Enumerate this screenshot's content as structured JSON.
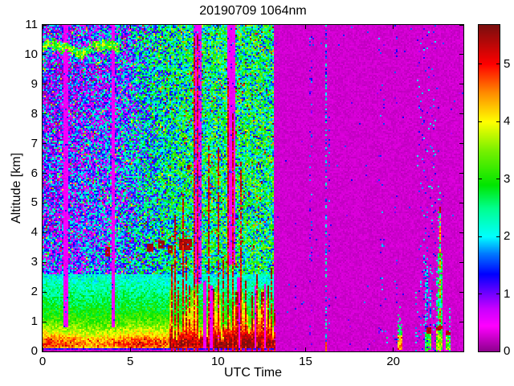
{
  "chart_data": {
    "type": "heatmap",
    "title": "20190709 1064nm",
    "xlabel": "UTC Time",
    "ylabel": "Altitude [km]",
    "xlim": [
      0,
      24
    ],
    "ylim": [
      0,
      11
    ],
    "xticks": [
      0,
      5,
      10,
      15,
      20
    ],
    "yticks": [
      0,
      1,
      2,
      3,
      4,
      5,
      6,
      7,
      8,
      9,
      10,
      11
    ],
    "grid": false,
    "legend": "colorbar-right",
    "colorbar": {
      "min": 0,
      "max": 5.68,
      "ticks": [
        0,
        1,
        2,
        3,
        4,
        5
      ]
    },
    "colors": {
      "background": "#ffffff",
      "axis": "#000000",
      "low_value_purple": "#8b008b"
    },
    "colormap": [
      [
        0.0,
        "#8b008b"
      ],
      [
        0.45,
        "#ff00ff"
      ],
      [
        0.75,
        "#c800ff"
      ],
      [
        1.05,
        "#6400ff"
      ],
      [
        1.35,
        "#0000ff"
      ],
      [
        1.7,
        "#0078ff"
      ],
      [
        2.0,
        "#00ffff"
      ],
      [
        2.5,
        "#00ff8c"
      ],
      [
        2.9,
        "#00e600"
      ],
      [
        3.5,
        "#78f000"
      ],
      [
        4.0,
        "#ffff00"
      ],
      [
        4.5,
        "#ff8c00"
      ],
      [
        5.0,
        "#ff0000"
      ],
      [
        5.68,
        "#7a0e0e"
      ]
    ],
    "background_field": {
      "active_until_utc": 13.18,
      "seed": 7,
      "boundary_layer_profile": [
        [
          0.115,
          4.3
        ],
        [
          0.22,
          4.7
        ],
        [
          0.4,
          4.45
        ],
        [
          0.6,
          3.95
        ],
        [
          0.85,
          3.45
        ],
        [
          1.1,
          3.15
        ],
        [
          1.45,
          2.85
        ],
        [
          1.8,
          2.6
        ],
        [
          2.2,
          2.35
        ],
        [
          2.6,
          2.1
        ]
      ],
      "free_troposphere_means": [
        [
          0,
          1.1
        ],
        [
          1.5,
          1.15
        ],
        [
          3,
          1.35
        ],
        [
          5,
          1.7
        ],
        [
          6.5,
          2.15
        ],
        [
          7.5,
          2.4
        ],
        [
          9,
          2.55
        ],
        [
          13.3,
          2.55
        ]
      ],
      "quiet_background_value": 0.2
    },
    "features": [
      {
        "type": "gap",
        "t": [
          1.17,
          1.46
        ],
        "h": [
          0.8,
          11
        ],
        "dot": 0.05
      },
      {
        "type": "gap",
        "t": [
          3.95,
          4.13
        ],
        "h": [
          0.8,
          11
        ],
        "dot": 0.05
      },
      {
        "type": "cirrus",
        "t": [
          0,
          4.4
        ],
        "h": [
          9.8,
          10.7
        ]
      },
      {
        "type": "gap",
        "t": [
          8.6,
          9.05
        ],
        "h": [
          2.3,
          11
        ],
        "dot": 0.2
      },
      {
        "type": "gap",
        "t": [
          10.52,
          11.0
        ],
        "h": [
          2.9,
          11
        ],
        "dot": 0.06
      },
      {
        "type": "gap",
        "t": [
          9.12,
          9.3
        ],
        "h": [
          0.12,
          2.4
        ],
        "dot": 0.04
      },
      {
        "type": "gap",
        "t": [
          9.55,
          9.68
        ],
        "h": [
          0.12,
          2.2
        ],
        "dot": 0.04
      },
      {
        "type": "gap",
        "t": [
          9.98,
          10.08
        ],
        "h": [
          0.12,
          2.3
        ],
        "dot": 0.04
      },
      {
        "type": "gap",
        "t": [
          11.12,
          11.28
        ],
        "h": [
          0.12,
          2.5
        ],
        "dot": 0.04
      },
      {
        "type": "gap",
        "t": [
          12.05,
          12.18
        ],
        "h": [
          0.12,
          2.2
        ],
        "dot": 0.04
      },
      {
        "type": "gap",
        "t": [
          12.62,
          12.72
        ],
        "h": [
          0.12,
          2.3
        ],
        "dot": 0.04
      },
      {
        "type": "blob",
        "t": [
          3.58,
          3.85
        ],
        "h": [
          3.2,
          3.5
        ]
      },
      {
        "type": "blob",
        "t": [
          5.95,
          6.3
        ],
        "h": [
          3.35,
          3.62
        ]
      },
      {
        "type": "blob",
        "t": [
          6.55,
          7.0
        ],
        "h": [
          3.45,
          3.72
        ]
      },
      {
        "type": "blob",
        "t": [
          7.15,
          7.45
        ],
        "h": [
          3.3,
          3.56
        ]
      },
      {
        "type": "blob",
        "t": [
          7.8,
          8.5
        ],
        "h": [
          3.42,
          3.78
        ]
      },
      {
        "type": "blob",
        "t": [
          8.22,
          8.42
        ],
        "h": [
          6.12,
          6.3
        ]
      },
      {
        "type": "spike",
        "t": 7.35,
        "w": 0.05,
        "top": 2.9
      },
      {
        "type": "spike",
        "t": 7.55,
        "w": 0.05,
        "top": 4.6
      },
      {
        "type": "spike",
        "t": 7.75,
        "w": 0.05,
        "top": 2.4
      },
      {
        "type": "spike",
        "t": 7.98,
        "w": 0.05,
        "top": 5.3
      },
      {
        "type": "spike",
        "t": 8.18,
        "w": 0.05,
        "top": 3.2
      },
      {
        "type": "spike",
        "t": 8.38,
        "w": 0.05,
        "top": 2.3
      },
      {
        "type": "spike",
        "t": 8.62,
        "w": 0.05,
        "top": 10.6
      },
      {
        "type": "spike",
        "t": 8.84,
        "w": 0.05,
        "top": 10.7
      },
      {
        "type": "spike",
        "t": 9.45,
        "w": 0.05,
        "top": 7.0
      },
      {
        "type": "spike",
        "t": 9.78,
        "w": 0.05,
        "top": 2.1
      },
      {
        "type": "spike",
        "t": 10.05,
        "w": 0.05,
        "top": 6.9
      },
      {
        "type": "spike",
        "t": 10.32,
        "w": 0.05,
        "top": 3.2
      },
      {
        "type": "spike",
        "t": 10.6,
        "w": 0.05,
        "top": 9.2
      },
      {
        "type": "spike",
        "t": 10.84,
        "w": 0.05,
        "top": 8.0
      },
      {
        "type": "spike",
        "t": 11.08,
        "w": 0.05,
        "top": 2.0
      },
      {
        "type": "spike",
        "t": 11.35,
        "w": 0.05,
        "top": 6.4
      },
      {
        "type": "spike",
        "t": 11.62,
        "w": 0.05,
        "top": 2.4
      },
      {
        "type": "spike",
        "t": 11.95,
        "w": 0.05,
        "top": 2.0
      },
      {
        "type": "spike",
        "t": 12.25,
        "w": 0.05,
        "top": 2.6
      },
      {
        "type": "spike",
        "t": 12.55,
        "w": 0.05,
        "top": 2.0
      },
      {
        "type": "spike",
        "t": 12.85,
        "w": 0.05,
        "top": 2.2
      },
      {
        "type": "spike",
        "t": 13.08,
        "w": 0.05,
        "top": 2.8
      },
      {
        "type": "spike",
        "t": 13.22,
        "w": 0.05,
        "top": 1.4
      },
      {
        "type": "dots",
        "t": 14.4,
        "w": 0.06,
        "top": 6,
        "density": 0.05,
        "vr": [
          0.7,
          1.5
        ]
      },
      {
        "type": "dots",
        "t": 15.3,
        "w": 0.06,
        "top": 11,
        "density": 0.13,
        "vr": [
          0.6,
          1.9
        ]
      },
      {
        "type": "block",
        "t": [
          15.26,
          15.34
        ],
        "h": [
          0.1,
          1.9
        ],
        "vr": [
          1.5,
          2.5
        ],
        "density": 0.75
      },
      {
        "type": "block",
        "t": [
          15.26,
          15.34
        ],
        "h": [
          0,
          0.1
        ],
        "vr": [
          0.5,
          0.7
        ],
        "density": 1
      },
      {
        "type": "dots",
        "t": 16.18,
        "w": 0.07,
        "top": 11,
        "density": 0.5,
        "vr": [
          1.3,
          2.4
        ]
      },
      {
        "type": "dots",
        "t": 16.32,
        "w": 0.04,
        "top": 8,
        "density": 0.12,
        "vr": [
          1.0,
          2.0
        ]
      },
      {
        "type": "block",
        "t": [
          16.14,
          16.23
        ],
        "h": [
          0,
          0.32
        ],
        "vr": [
          4.5,
          5.3
        ],
        "density": 1
      },
      {
        "type": "dots",
        "t": 17.55,
        "w": 0.05,
        "top": 3.5,
        "density": 0.035,
        "vr": [
          0.7,
          1.3
        ]
      },
      {
        "type": "dots",
        "t": 19.35,
        "w": 0.16,
        "top": 11,
        "density": 0.05,
        "vr": [
          1.0,
          2.0
        ]
      },
      {
        "type": "dots",
        "t": 19.62,
        "w": 0.06,
        "top": 1.2,
        "density": 0.3,
        "vr": [
          1.8,
          2.6
        ]
      },
      {
        "type": "dots",
        "t": 20.15,
        "w": 0.1,
        "top": 11,
        "density": 0.05,
        "vr": [
          0.9,
          1.8
        ]
      },
      {
        "type": "block",
        "t": [
          20.27,
          20.5
        ],
        "h": [
          0.08,
          0.52
        ],
        "vr": [
          3.8,
          5.1
        ],
        "density": 0.95
      },
      {
        "type": "block",
        "t": [
          20.25,
          20.52
        ],
        "h": [
          0.52,
          0.9
        ],
        "vr": [
          2.4,
          3.2
        ],
        "density": 0.7
      },
      {
        "type": "dots",
        "t": 20.38,
        "w": 0.15,
        "top": 1.7,
        "density": 0.15,
        "vr": [
          1.8,
          2.6
        ]
      },
      {
        "type": "dots",
        "t": 21.3,
        "w": 0.06,
        "top": 2.0,
        "density": 0.4,
        "vr": [
          1.7,
          2.7
        ]
      },
      {
        "type": "dots",
        "t": 21.9,
        "w": 0.55,
        "top": 11,
        "density": 0.06,
        "vr": [
          0.8,
          2.2
        ]
      },
      {
        "type": "dots",
        "t": 21.82,
        "w": 0.04,
        "top": 3.3,
        "density": 0.45,
        "vr": [
          1.3,
          2.4
        ]
      },
      {
        "type": "dots",
        "t": 21.97,
        "w": 0.04,
        "top": 3.6,
        "density": 0.45,
        "vr": [
          1.3,
          2.4
        ]
      },
      {
        "type": "dots",
        "t": 22.12,
        "w": 0.04,
        "top": 3.2,
        "density": 0.45,
        "vr": [
          1.3,
          2.4
        ]
      },
      {
        "type": "block",
        "t": [
          21.78,
          21.88
        ],
        "h": [
          0,
          0.6
        ],
        "vr": [
          2.0,
          3.2
        ],
        "density": 0.9
      },
      {
        "type": "block",
        "t": [
          21.93,
          22.18
        ],
        "h": [
          0,
          0.62
        ],
        "vr": [
          2.4,
          3.8
        ],
        "density": 0.95
      },
      {
        "type": "block",
        "t": [
          21.93,
          22.18
        ],
        "h": [
          0.62,
          0.82
        ],
        "vr": [
          5.2,
          5.6
        ],
        "density": 0.9
      },
      {
        "type": "dots",
        "t": 22.3,
        "w": 0.05,
        "top": 1.5,
        "density": 0.2,
        "vr": [
          1.5,
          2.5
        ]
      },
      {
        "type": "dots",
        "t": 22.47,
        "w": 0.05,
        "top": 3.1,
        "density": 0.5,
        "vr": [
          1.8,
          2.8
        ]
      },
      {
        "type": "block",
        "t": [
          22.53,
          22.78
        ],
        "h": [
          0,
          3.3
        ],
        "vr": [
          2.2,
          3.2
        ],
        "density": 0.85
      },
      {
        "type": "spike",
        "t": 22.64,
        "w": 0.05,
        "top": 4.85,
        "v": 4.2
      },
      {
        "type": "dots",
        "t": 22.64,
        "w": 0.07,
        "top": 5.6,
        "density": 0.25,
        "vr": [
          1.8,
          2.8
        ]
      },
      {
        "type": "block",
        "t": [
          22.4,
          22.85
        ],
        "h": [
          0,
          0.68
        ],
        "vr": [
          2.6,
          4.2
        ],
        "density": 0.97
      },
      {
        "type": "block",
        "t": [
          22.4,
          22.85
        ],
        "h": [
          0.68,
          0.88
        ],
        "vr": [
          5.1,
          5.6
        ],
        "density": 0.9
      },
      {
        "type": "gap",
        "t": [
          22.86,
          22.97
        ],
        "h": [
          0,
          1.2
        ],
        "dot": 0.05
      },
      {
        "type": "block",
        "t": [
          22.98,
          23.28
        ],
        "h": [
          0,
          0.55
        ],
        "vr": [
          2.4,
          4.0
        ],
        "density": 0.95
      },
      {
        "type": "block",
        "t": [
          23.0,
          23.25
        ],
        "h": [
          0.55,
          0.72
        ],
        "vr": [
          5.0,
          5.6
        ],
        "density": 0.85
      },
      {
        "type": "dots",
        "t": 23.2,
        "w": 0.05,
        "top": 1.7,
        "density": 0.3,
        "vr": [
          1.7,
          2.6
        ]
      },
      {
        "type": "block",
        "t": [
          21.5,
          23.3
        ],
        "h": [
          0,
          0.05
        ],
        "vr": [
          0.45,
          0.7
        ],
        "density": 0.5
      }
    ]
  }
}
